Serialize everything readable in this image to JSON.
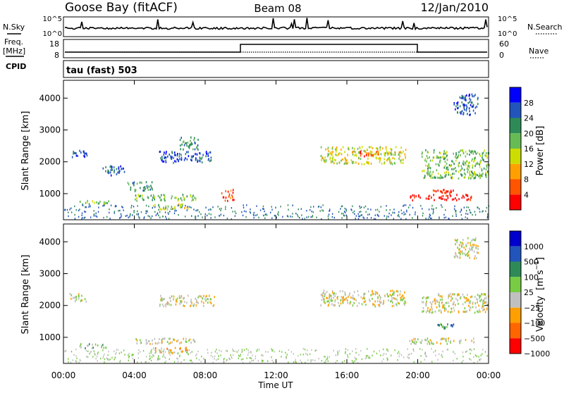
{
  "header": {
    "station": "Goose Bay (fitACF)",
    "beam": "Beam 08",
    "date": "12/Jan/2010"
  },
  "aux": {
    "nsky_label": "N.Sky",
    "nsearch_label": "N.Search",
    "freq_label_1": "Freq.",
    "freq_label_2": "[MHz]",
    "nave_label": "Nave",
    "cpid_label": "CPID",
    "cpid_value": "tau (fast) 503",
    "noise_ticks": [
      "10^5",
      "10^0"
    ],
    "freq_ticks": [
      "18",
      "8"
    ],
    "nave_ticks": [
      "60",
      "0"
    ]
  },
  "chart_data": [
    {
      "type": "heatmap",
      "name": "power",
      "ylabel": "Slant Range [km]",
      "xlabel": "",
      "x_ticks": [
        "00:00",
        "04:00",
        "08:00",
        "12:00",
        "16:00",
        "20:00",
        "00:00"
      ],
      "y_ticks": [
        1000,
        2000,
        3000,
        4000
      ],
      "xlim_hours": [
        0,
        24
      ],
      "ylim_km": [
        180,
        4560
      ],
      "colorbar": {
        "label": "Power [dB]",
        "ticks": [
          "4",
          "8",
          "12",
          "16",
          "20",
          "24",
          "28"
        ],
        "colors": [
          "#0000ff",
          "#2255bb",
          "#2e8b57",
          "#66bb55",
          "#ccdd00",
          "#ffa000",
          "#ff5500",
          "#ff0000"
        ]
      },
      "regions": [
        {
          "t0": 0.3,
          "t1": 1.3,
          "r0": 2150,
          "r1": 2400,
          "level": 1
        },
        {
          "t0": 0.9,
          "t1": 2.6,
          "r0": 680,
          "r1": 820,
          "level": 3
        },
        {
          "t0": 2.2,
          "t1": 3.5,
          "r0": 1600,
          "r1": 1900,
          "level": 1
        },
        {
          "t0": 3.6,
          "t1": 5.0,
          "r0": 1100,
          "r1": 1400,
          "level": 2
        },
        {
          "t0": 4.0,
          "t1": 7.5,
          "r0": 800,
          "r1": 1000,
          "level": 3
        },
        {
          "t0": 5.0,
          "t1": 7.0,
          "r0": 520,
          "r1": 700,
          "level": 4
        },
        {
          "t0": 8.9,
          "t1": 9.6,
          "r0": 800,
          "r1": 1150,
          "level": 6
        },
        {
          "t0": 5.4,
          "t1": 8.5,
          "r0": 2000,
          "r1": 2350,
          "level": 1
        },
        {
          "t0": 6.5,
          "t1": 7.6,
          "r0": 2400,
          "r1": 2800,
          "level": 2
        },
        {
          "t0": 14.5,
          "t1": 19.3,
          "r0": 1950,
          "r1": 2500,
          "level": 4
        },
        {
          "t0": 16.6,
          "t1": 17.8,
          "r0": 2200,
          "r1": 2350,
          "level": 6
        },
        {
          "t0": 19.5,
          "t1": 23.2,
          "r0": 820,
          "r1": 1000,
          "level": 7
        },
        {
          "t0": 20.8,
          "t1": 22.0,
          "r0": 1050,
          "r1": 1150,
          "level": 7
        },
        {
          "t0": 20.2,
          "t1": 24.0,
          "r0": 1500,
          "r1": 2400,
          "level": 3
        },
        {
          "t0": 22.0,
          "t1": 23.4,
          "r0": 3500,
          "r1": 4150,
          "level": 1
        }
      ]
    },
    {
      "type": "heatmap",
      "name": "velocity",
      "ylabel": "Slant Range [km]",
      "xlabel": "Time UT",
      "x_ticks": [
        "00:00",
        "04:00",
        "08:00",
        "12:00",
        "16:00",
        "20:00",
        "00:00"
      ],
      "y_ticks": [
        1000,
        2000,
        3000,
        4000
      ],
      "xlim_hours": [
        0,
        24
      ],
      "ylim_km": [
        180,
        4560
      ],
      "colorbar": {
        "label": "Velocity",
        "ticks": [
          "1000",
          "500",
          "100",
          "25",
          "−25",
          "−100",
          "−500",
          "−1000"
        ],
        "colors": [
          "#0000cc",
          "#2255bb",
          "#2e8b57",
          "#77cc44",
          "#c0c0c0",
          "#ffa000",
          "#ff6600",
          "#ff0000"
        ]
      },
      "regions": [
        {
          "t0": 0.3,
          "t1": 1.3,
          "r0": 2150,
          "r1": 2400,
          "level": 4
        },
        {
          "t0": 0.9,
          "t1": 2.6,
          "r0": 680,
          "r1": 820,
          "level": 3
        },
        {
          "t0": 4.0,
          "t1": 7.5,
          "r0": 820,
          "r1": 1000,
          "level": 4
        },
        {
          "t0": 5.0,
          "t1": 7.0,
          "r0": 520,
          "r1": 700,
          "level": 5
        },
        {
          "t0": 5.4,
          "t1": 8.5,
          "r0": 2000,
          "r1": 2350,
          "level": 4
        },
        {
          "t0": 14.5,
          "t1": 19.3,
          "r0": 2000,
          "r1": 2500,
          "level": 4
        },
        {
          "t0": 19.5,
          "t1": 23.2,
          "r0": 820,
          "r1": 1000,
          "level": 4
        },
        {
          "t0": 20.8,
          "t1": 22.0,
          "r0": 1300,
          "r1": 1450,
          "level": 2
        },
        {
          "t0": 20.2,
          "t1": 24.0,
          "r0": 1800,
          "r1": 2400,
          "level": 4
        },
        {
          "t0": 22.0,
          "t1": 23.4,
          "r0": 3500,
          "r1": 4150,
          "level": 4
        }
      ]
    }
  ]
}
